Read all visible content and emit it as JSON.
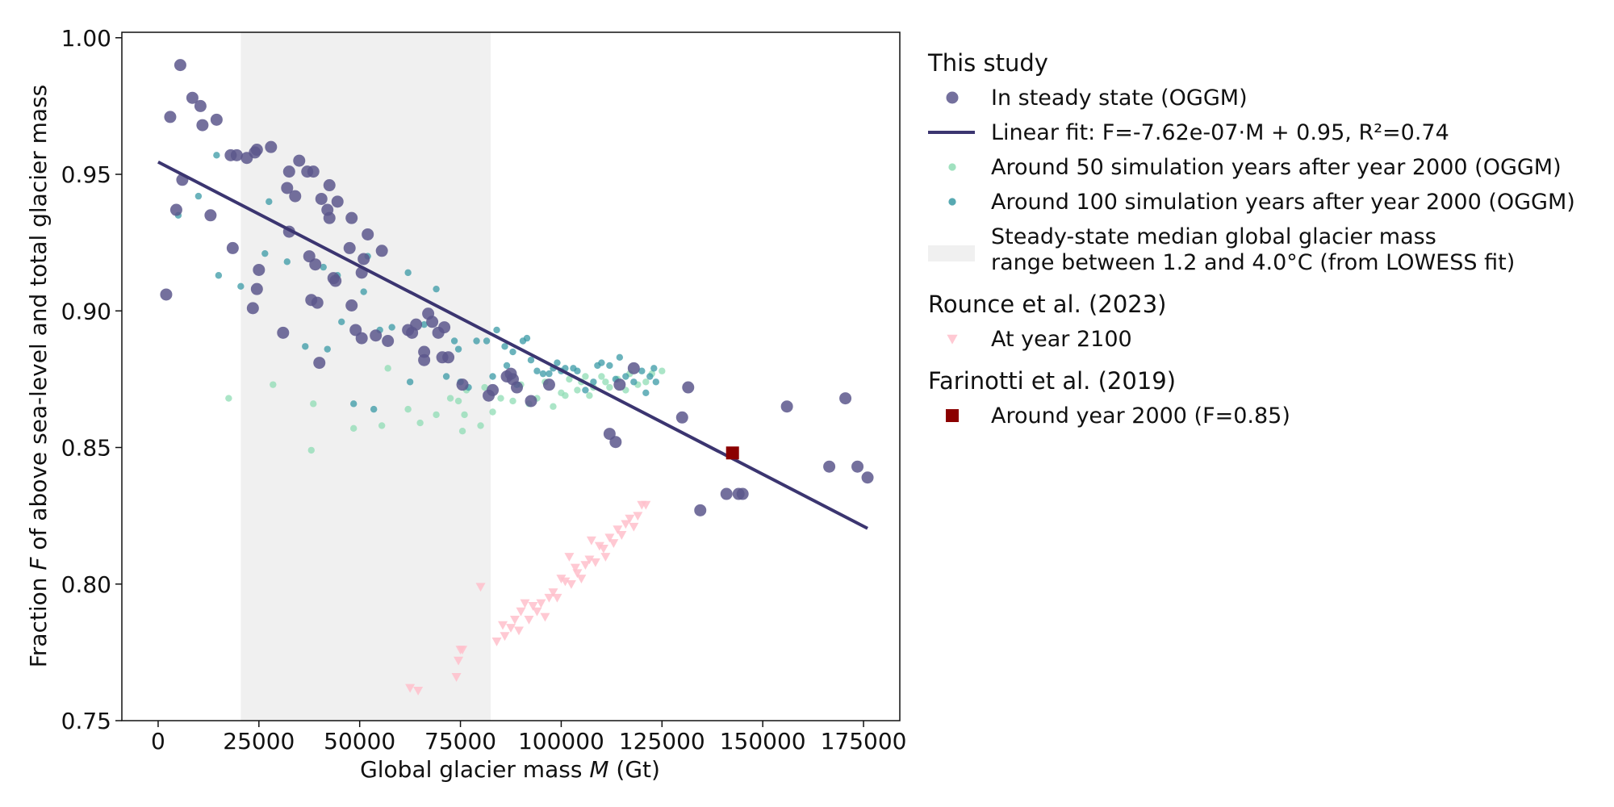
{
  "chart_data": {
    "type": "scatter",
    "xlabel_prefix": "Global glacier mass ",
    "xlabel_var": "M",
    "xlabel_suffix": " (Gt)",
    "ylabel_prefix": "Fraction ",
    "ylabel_var": "F",
    "ylabel_suffix": " of above sea-level and total glacier mass",
    "xlim": [
      -9000,
      184000
    ],
    "ylim": [
      0.75,
      1.002
    ],
    "xticks": [
      0,
      25000,
      50000,
      75000,
      100000,
      125000,
      150000,
      175000
    ],
    "xtick_labels": [
      "0",
      "25000",
      "50000",
      "75000",
      "100000",
      "125000",
      "150000",
      "175000"
    ],
    "yticks": [
      0.75,
      0.8,
      0.85,
      0.9,
      0.95,
      1.0
    ],
    "ytick_labels": [
      "0.75",
      "0.80",
      "0.85",
      "0.90",
      "0.95",
      "1.00"
    ],
    "grid": false,
    "shaded_range": {
      "x0": 20500,
      "x1": 82500,
      "color": "#f0f0f0"
    },
    "fit_line": {
      "slope": -7.62e-07,
      "intercept": 0.9545,
      "x0": 0,
      "x1": 176000,
      "color": "#3b3570"
    },
    "series": [
      {
        "name": "In steady state (OGGM)",
        "marker": "circle",
        "color": "#5c578c",
        "points": [
          [
            2000,
            0.906
          ],
          [
            3000,
            0.971
          ],
          [
            4500,
            0.937
          ],
          [
            5500,
            0.99
          ],
          [
            6000,
            0.948
          ],
          [
            8500,
            0.978
          ],
          [
            10500,
            0.975
          ],
          [
            11000,
            0.968
          ],
          [
            13000,
            0.935
          ],
          [
            14500,
            0.97
          ],
          [
            18000,
            0.957
          ],
          [
            18500,
            0.923
          ],
          [
            19500,
            0.957
          ],
          [
            22000,
            0.956
          ],
          [
            23500,
            0.901
          ],
          [
            24000,
            0.958
          ],
          [
            24500,
            0.959
          ],
          [
            24500,
            0.908
          ],
          [
            25000,
            0.915
          ],
          [
            28000,
            0.96
          ],
          [
            31000,
            0.892
          ],
          [
            32000,
            0.945
          ],
          [
            32500,
            0.951
          ],
          [
            32500,
            0.929
          ],
          [
            34000,
            0.942
          ],
          [
            35000,
            0.955
          ],
          [
            37000,
            0.951
          ],
          [
            37500,
            0.92
          ],
          [
            38000,
            0.904
          ],
          [
            38500,
            0.951
          ],
          [
            39000,
            0.917
          ],
          [
            39500,
            0.903
          ],
          [
            40000,
            0.881
          ],
          [
            40500,
            0.941
          ],
          [
            42000,
            0.937
          ],
          [
            42500,
            0.934
          ],
          [
            42500,
            0.946
          ],
          [
            43500,
            0.912
          ],
          [
            44000,
            0.911
          ],
          [
            44500,
            0.94
          ],
          [
            47500,
            0.923
          ],
          [
            48000,
            0.934
          ],
          [
            48000,
            0.902
          ],
          [
            49000,
            0.893
          ],
          [
            50500,
            0.89
          ],
          [
            50500,
            0.914
          ],
          [
            51000,
            0.919
          ],
          [
            52000,
            0.928
          ],
          [
            54000,
            0.891
          ],
          [
            55500,
            0.922
          ],
          [
            57000,
            0.889
          ],
          [
            62000,
            0.893
          ],
          [
            63000,
            0.892
          ],
          [
            64000,
            0.895
          ],
          [
            66000,
            0.885
          ],
          [
            66000,
            0.882
          ],
          [
            67000,
            0.899
          ],
          [
            68000,
            0.896
          ],
          [
            69500,
            0.892
          ],
          [
            70500,
            0.883
          ],
          [
            71000,
            0.894
          ],
          [
            72000,
            0.883
          ],
          [
            75500,
            0.873
          ],
          [
            82000,
            0.869
          ],
          [
            83000,
            0.871
          ],
          [
            86500,
            0.876
          ],
          [
            87500,
            0.877
          ],
          [
            88000,
            0.875
          ],
          [
            89000,
            0.872
          ],
          [
            92500,
            0.867
          ],
          [
            97000,
            0.873
          ],
          [
            112000,
            0.855
          ],
          [
            113500,
            0.852
          ],
          [
            114500,
            0.873
          ],
          [
            118000,
            0.879
          ],
          [
            130000,
            0.861
          ],
          [
            131500,
            0.872
          ],
          [
            134500,
            0.827
          ],
          [
            141000,
            0.833
          ],
          [
            144000,
            0.833
          ],
          [
            145000,
            0.833
          ],
          [
            156000,
            0.865
          ],
          [
            166500,
            0.843
          ],
          [
            170500,
            0.868
          ],
          [
            173500,
            0.843
          ],
          [
            176000,
            0.839
          ]
        ]
      },
      {
        "name": "Around 50 simulation years after year 2000 (OGGM)",
        "marker": "small-circle",
        "color": "#8fdcb4",
        "points": [
          [
            17500,
            0.868
          ],
          [
            28500,
            0.873
          ],
          [
            38000,
            0.849
          ],
          [
            38500,
            0.866
          ],
          [
            48500,
            0.857
          ],
          [
            55500,
            0.858
          ],
          [
            57000,
            0.879
          ],
          [
            62000,
            0.864
          ],
          [
            65000,
            0.859
          ],
          [
            69000,
            0.862
          ],
          [
            72500,
            0.868
          ],
          [
            74500,
            0.867
          ],
          [
            75500,
            0.856
          ],
          [
            76000,
            0.862
          ],
          [
            76500,
            0.871
          ],
          [
            80000,
            0.858
          ],
          [
            81000,
            0.872
          ],
          [
            83000,
            0.863
          ],
          [
            85000,
            0.868
          ],
          [
            88000,
            0.867
          ],
          [
            90000,
            0.873
          ],
          [
            92000,
            0.866
          ],
          [
            94000,
            0.868
          ],
          [
            96000,
            0.874
          ],
          [
            98000,
            0.865
          ],
          [
            100000,
            0.87
          ],
          [
            101000,
            0.869
          ],
          [
            102000,
            0.875
          ],
          [
            104000,
            0.871
          ],
          [
            105000,
            0.874
          ],
          [
            106000,
            0.876
          ],
          [
            107000,
            0.869
          ],
          [
            108000,
            0.872
          ],
          [
            110000,
            0.876
          ],
          [
            111000,
            0.874
          ],
          [
            112000,
            0.872
          ],
          [
            114000,
            0.875
          ],
          [
            116000,
            0.871
          ],
          [
            117000,
            0.877
          ],
          [
            119000,
            0.873
          ],
          [
            121000,
            0.874
          ],
          [
            122500,
            0.877
          ],
          [
            125000,
            0.878
          ]
        ]
      },
      {
        "name": "Around 100 simulation years after year 2000 (OGGM)",
        "marker": "small-circle",
        "color": "#3a9aa5",
        "points": [
          [
            5000,
            0.935
          ],
          [
            10000,
            0.942
          ],
          [
            14500,
            0.957
          ],
          [
            15000,
            0.913
          ],
          [
            20500,
            0.909
          ],
          [
            26500,
            0.921
          ],
          [
            27500,
            0.94
          ],
          [
            32000,
            0.918
          ],
          [
            36500,
            0.887
          ],
          [
            41000,
            0.916
          ],
          [
            42000,
            0.886
          ],
          [
            44500,
            0.913
          ],
          [
            45500,
            0.896
          ],
          [
            48500,
            0.866
          ],
          [
            51000,
            0.907
          ],
          [
            52000,
            0.92
          ],
          [
            53500,
            0.864
          ],
          [
            55000,
            0.893
          ],
          [
            58000,
            0.894
          ],
          [
            62000,
            0.914
          ],
          [
            62500,
            0.874
          ],
          [
            66000,
            0.895
          ],
          [
            69000,
            0.908
          ],
          [
            71500,
            0.876
          ],
          [
            73500,
            0.889
          ],
          [
            74500,
            0.886
          ],
          [
            75000,
            0.874
          ],
          [
            77000,
            0.872
          ],
          [
            79000,
            0.889
          ],
          [
            81500,
            0.889
          ],
          [
            83000,
            0.876
          ],
          [
            84000,
            0.893
          ],
          [
            86000,
            0.887
          ],
          [
            86500,
            0.88
          ],
          [
            88000,
            0.885
          ],
          [
            89000,
            0.873
          ],
          [
            90500,
            0.889
          ],
          [
            91500,
            0.89
          ],
          [
            92500,
            0.882
          ],
          [
            94000,
            0.878
          ],
          [
            95500,
            0.877
          ],
          [
            97000,
            0.877
          ],
          [
            98000,
            0.879
          ],
          [
            99000,
            0.881
          ],
          [
            100000,
            0.878
          ],
          [
            101000,
            0.879
          ],
          [
            103000,
            0.879
          ],
          [
            104000,
            0.878
          ],
          [
            106000,
            0.871
          ],
          [
            108000,
            0.874
          ],
          [
            109000,
            0.88
          ],
          [
            110000,
            0.881
          ],
          [
            112000,
            0.88
          ],
          [
            113500,
            0.875
          ],
          [
            114500,
            0.883
          ],
          [
            116000,
            0.876
          ],
          [
            118000,
            0.874
          ],
          [
            120000,
            0.878
          ],
          [
            121000,
            0.87
          ],
          [
            122000,
            0.876
          ],
          [
            123000,
            0.879
          ],
          [
            123500,
            0.874
          ]
        ]
      },
      {
        "name": "At year 2100",
        "marker": "triangle-down",
        "color": "#ffc0cb",
        "points": [
          [
            62500,
            0.762
          ],
          [
            64500,
            0.761
          ],
          [
            74000,
            0.766
          ],
          [
            74500,
            0.772
          ],
          [
            75000,
            0.776
          ],
          [
            75500,
            0.776
          ],
          [
            80000,
            0.799
          ],
          [
            84000,
            0.779
          ],
          [
            85500,
            0.785
          ],
          [
            86000,
            0.781
          ],
          [
            87500,
            0.784
          ],
          [
            88500,
            0.787
          ],
          [
            89500,
            0.783
          ],
          [
            90000,
            0.79
          ],
          [
            91000,
            0.793
          ],
          [
            92000,
            0.787
          ],
          [
            93000,
            0.792
          ],
          [
            94000,
            0.79
          ],
          [
            95000,
            0.793
          ],
          [
            96000,
            0.788
          ],
          [
            97000,
            0.795
          ],
          [
            98000,
            0.797
          ],
          [
            99000,
            0.795
          ],
          [
            100000,
            0.802
          ],
          [
            101000,
            0.801
          ],
          [
            102000,
            0.81
          ],
          [
            102500,
            0.8
          ],
          [
            103500,
            0.806
          ],
          [
            104000,
            0.804
          ],
          [
            105000,
            0.802
          ],
          [
            106000,
            0.807
          ],
          [
            107000,
            0.809
          ],
          [
            107500,
            0.816
          ],
          [
            108500,
            0.808
          ],
          [
            109500,
            0.814
          ],
          [
            110500,
            0.813
          ],
          [
            111000,
            0.81
          ],
          [
            112000,
            0.817
          ],
          [
            113000,
            0.815
          ],
          [
            114000,
            0.82
          ],
          [
            115000,
            0.818
          ],
          [
            116000,
            0.822
          ],
          [
            117000,
            0.824
          ],
          [
            118000,
            0.821
          ],
          [
            119000,
            0.825
          ],
          [
            120000,
            0.829
          ],
          [
            121000,
            0.829
          ]
        ]
      },
      {
        "name": "Around year 2000 (F=0.85)",
        "marker": "square",
        "color": "#8b0000",
        "points": [
          [
            142500,
            0.848
          ]
        ]
      }
    ],
    "legend": {
      "placement": "right, outside plot",
      "groups": [
        {
          "title": "This study",
          "entries": [
            {
              "label": "In steady state (OGGM)",
              "kind": "circle",
              "color": "#5c578c"
            },
            {
              "label": "Linear fit: F=-7.62e-07·M + 0.95, R²=0.74",
              "kind": "line",
              "color": "#3b3570"
            },
            {
              "label": "Around 50 simulation years after year 2000 (OGGM)",
              "kind": "small-circle",
              "color": "#8fdcb4"
            },
            {
              "label": "Around 100 simulation years after year 2000 (OGGM)",
              "kind": "small-circle",
              "color": "#3a9aa5"
            },
            {
              "label": "Steady-state median global glacier mass",
              "label2": "range between 1.2 and 4.0°C (from LOWESS fit)",
              "kind": "patch",
              "color": "#f0f0f0"
            }
          ]
        },
        {
          "title": "Rounce et al. (2023)",
          "entries": [
            {
              "label": "At year 2100",
              "kind": "triangle-down",
              "color": "#ffc0cb"
            }
          ]
        },
        {
          "title": "Farinotti et al. (2019)",
          "entries": [
            {
              "label": "Around year 2000 (F=0.85)",
              "kind": "square",
              "color": "#8b0000"
            }
          ]
        }
      ]
    }
  }
}
